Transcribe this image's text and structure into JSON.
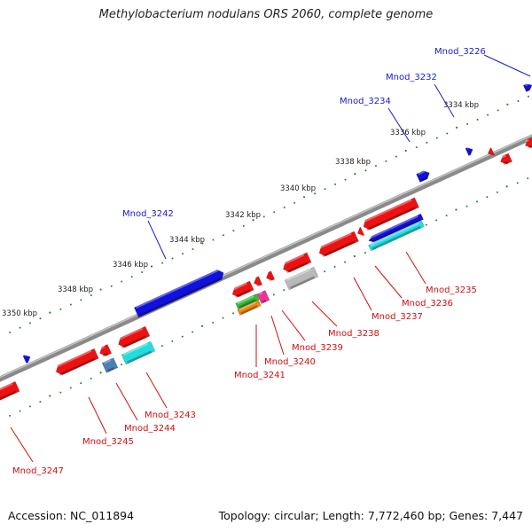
{
  "title": "Methylobacterium nodulans ORS 2060, complete genome",
  "footer": {
    "accession": "Accession: NC_011894",
    "topology": "Topology: circular; Length: 7,772,460 bp; Genes: 7,447"
  },
  "colors": {
    "backbone": "#8a8a8a",
    "tick": "#2e7d32",
    "forward_label": "#1a1acc",
    "reverse_label": "#cc1111",
    "gene_red": "#ee1111",
    "gene_blue": "#1111dd",
    "gene_cyan": "#22dddd",
    "gene_steel": "#4a7fb5",
    "gene_gray": "#b8b8b8",
    "gene_green": "#33bb33",
    "gene_orange": "#ee8811",
    "gene_pink": "#ee3399"
  },
  "scale_labels": [
    "3334 kbp",
    "3336 kbp",
    "3338 kbp",
    "3340 kbp",
    "3342 kbp",
    "3344 kbp",
    "3346 kbp",
    "3348 kbp",
    "3350 kbp"
  ],
  "forward_gene_labels": [
    "Mnod_3226",
    "Mnod_3232",
    "Mnod_3234",
    "Mnod_3242"
  ],
  "reverse_gene_labels": [
    "Mnod_3235",
    "Mnod_3236",
    "Mnod_3237",
    "Mnod_3238",
    "Mnod_3239",
    "Mnod_3240",
    "Mnod_3241",
    "Mnod_3243",
    "Mnod_3244",
    "Mnod_3245",
    "Mnod_3247"
  ]
}
